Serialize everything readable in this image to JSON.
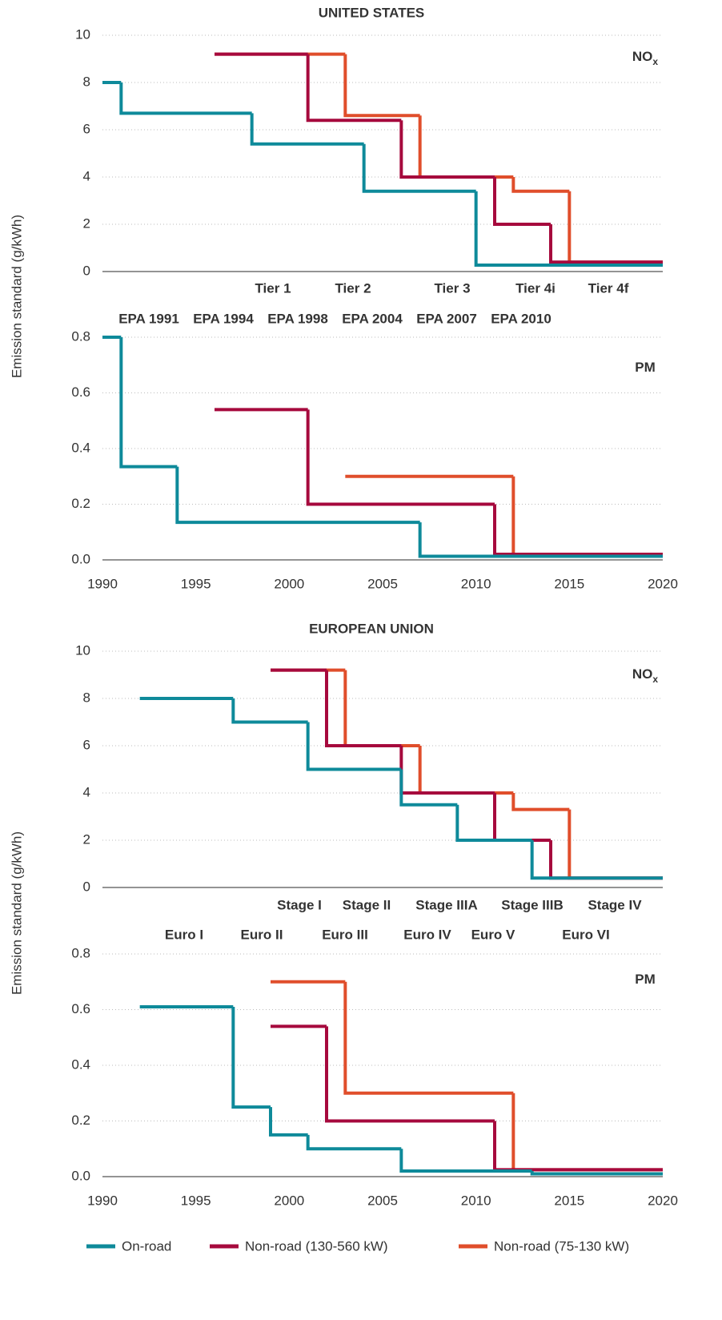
{
  "chart_data": [
    {
      "type": "line",
      "step": "post",
      "title": "UNITED STATES",
      "ylabel": "Emission standard (g/kWh)",
      "label": "NO",
      "label_sub": "x",
      "xlim": [
        1990,
        2020
      ],
      "ylim": [
        0,
        10
      ],
      "yticks": [
        0,
        2,
        4,
        6,
        8,
        10
      ],
      "grid": true,
      "annotations": [
        "Tier 1",
        "Tier 2",
        "Tier 3",
        "Tier 4i",
        "Tier 4f"
      ],
      "annotation_color": "#a6093d",
      "series": [
        {
          "name": "On-road",
          "color": "#0e8a9a",
          "x": [
            1990,
            1991,
            1998,
            2004,
            2010
          ],
          "values": [
            8,
            6.7,
            5.4,
            3.4,
            0.27
          ]
        },
        {
          "name": "Non-road (130-560 kW)",
          "color": "#a6093d",
          "x": [
            1996,
            2001,
            2006,
            2011,
            2014
          ],
          "values": [
            9.2,
            6.4,
            4.0,
            2.0,
            0.4
          ]
        },
        {
          "name": "Non-road (75-130 kW)",
          "color": "#e04e2b",
          "x": [
            1996,
            2003,
            2007,
            2012,
            2015
          ],
          "values": [
            9.2,
            6.6,
            4.0,
            3.4,
            0.4
          ]
        }
      ]
    },
    {
      "type": "line",
      "step": "post",
      "label": "PM",
      "xlim": [
        1990,
        2020
      ],
      "xticks": [
        1990,
        1995,
        2000,
        2005,
        2010,
        2015,
        2020
      ],
      "ylim": [
        0,
        0.8
      ],
      "yticks": [
        {
          "value": 0,
          "label": "0.0"
        },
        0.2,
        0.4,
        0.6,
        0.8
      ],
      "grid": true,
      "annotations": [
        "EPA 1991",
        "EPA 1994",
        "EPA 1998",
        "EPA 2004",
        "EPA 2007",
        "EPA 2010"
      ],
      "annotation_color": "#0e8a9a",
      "series": [
        {
          "name": "On-road",
          "color": "#0e8a9a",
          "x": [
            1990,
            1991,
            1994,
            2007
          ],
          "values": [
            0.8,
            0.335,
            0.135,
            0.013
          ]
        },
        {
          "name": "Non-road (130-560 kW)",
          "color": "#a6093d",
          "x": [
            1996,
            2001,
            2011
          ],
          "values": [
            0.54,
            0.2,
            0.02
          ]
        },
        {
          "name": "Non-road (75-130 kW)",
          "color": "#e04e2b",
          "x": [
            2003,
            2012
          ],
          "values": [
            0.3,
            0.02
          ]
        }
      ]
    },
    {
      "type": "line",
      "step": "post",
      "title": "EUROPEAN UNION",
      "ylabel": "Emission standard (g/kWh)",
      "label": "NO",
      "label_sub": "x",
      "xlim": [
        1990,
        2020
      ],
      "ylim": [
        0,
        10
      ],
      "yticks": [
        0,
        2,
        4,
        6,
        8,
        10
      ],
      "grid": true,
      "annotations": [
        "Stage I",
        "Stage II",
        "Stage IIIA",
        "Stage IIIB",
        "Stage IV"
      ],
      "annotation_color": "#a6093d",
      "series": [
        {
          "name": "On-road",
          "color": "#0e8a9a",
          "x": [
            1992,
            1997,
            2001,
            2006,
            2009,
            2013
          ],
          "values": [
            8,
            7,
            5,
            3.5,
            2,
            0.4
          ]
        },
        {
          "name": "Non-road (130-560 kW)",
          "color": "#a6093d",
          "x": [
            1999,
            2002,
            2006,
            2011,
            2014
          ],
          "values": [
            9.2,
            6,
            4,
            2,
            0.4
          ]
        },
        {
          "name": "Non-road (75-130 kW)",
          "color": "#e04e2b",
          "x": [
            1999,
            2003,
            2007,
            2012,
            2015
          ],
          "values": [
            9.2,
            6,
            4,
            3.3,
            0.4
          ]
        }
      ]
    },
    {
      "type": "line",
      "step": "post",
      "label": "PM",
      "xlim": [
        1990,
        2020
      ],
      "xticks": [
        1990,
        1995,
        2000,
        2005,
        2010,
        2015,
        2020
      ],
      "ylim": [
        0,
        0.8
      ],
      "yticks": [
        {
          "value": 0,
          "label": "0.0"
        },
        0.2,
        0.4,
        0.6,
        0.8
      ],
      "grid": true,
      "annotations": [
        "Euro I",
        "Euro II",
        "Euro III",
        "Euro IV",
        "Euro V",
        "Euro VI"
      ],
      "annotation_color": "#0e8a9a",
      "series": [
        {
          "name": "On-road",
          "color": "#0e8a9a",
          "x": [
            1992,
            1997,
            1999,
            2001,
            2006,
            2013
          ],
          "values": [
            0.61,
            0.25,
            0.15,
            0.1,
            0.02,
            0.01
          ]
        },
        {
          "name": "Non-road (130-560 kW)",
          "color": "#a6093d",
          "x": [
            1999,
            2002,
            2011
          ],
          "values": [
            0.54,
            0.2,
            0.025
          ]
        },
        {
          "name": "Non-road (75-130 kW)",
          "color": "#e04e2b",
          "x": [
            1999,
            2003,
            2012
          ],
          "values": [
            0.7,
            0.3,
            0.025
          ]
        }
      ]
    }
  ]
}
